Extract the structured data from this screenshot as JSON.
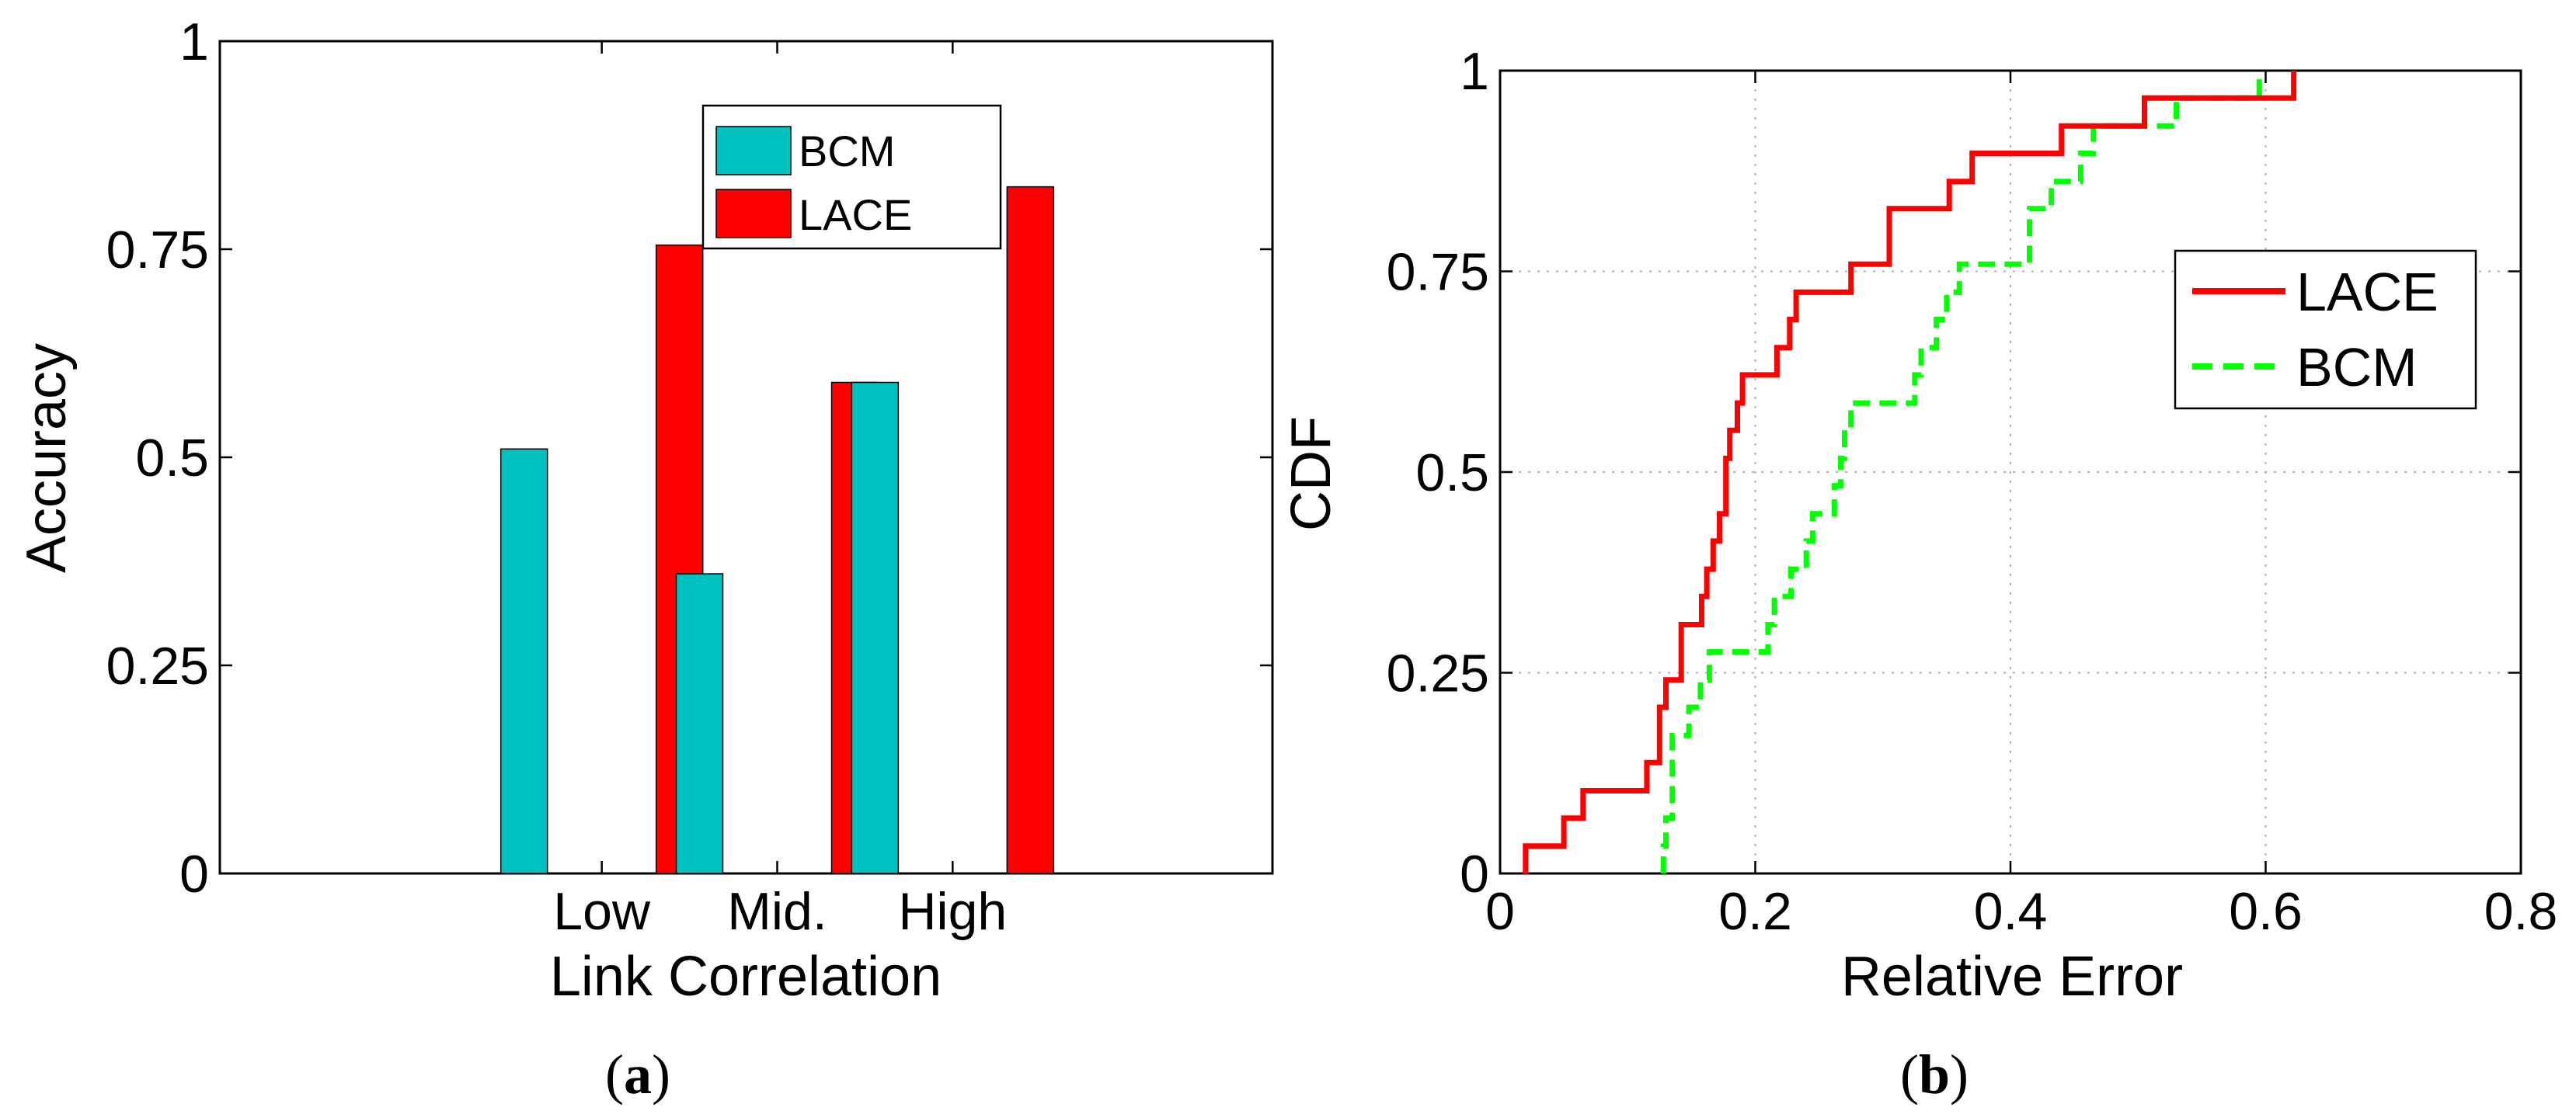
{
  "chart_data": [
    {
      "type": "bar",
      "panel_label": "a",
      "xlabel": "Link Correlation",
      "ylabel": "Accuracy",
      "categories": [
        "Low",
        "Mid.",
        "High"
      ],
      "ylim": [
        0,
        1
      ],
      "yticks": [
        "0",
        "0.25",
        "0.5",
        "0.75",
        "1"
      ],
      "yticks_values": [
        0,
        0.25,
        0.5,
        0.75,
        1
      ],
      "grid": false,
      "legend_position": "top-right",
      "series": [
        {
          "name": "BCM",
          "color": "#00BFBF",
          "values": [
            0.51,
            0.36,
            0.59
          ]
        },
        {
          "name": "LACE",
          "color": "#FF0000",
          "values": [
            0.755,
            0.59,
            0.825
          ]
        }
      ]
    },
    {
      "type": "line",
      "step": true,
      "panel_label": "b",
      "xlabel": "Relative Error",
      "ylabel": "CDF",
      "xlim": [
        0,
        0.8
      ],
      "ylim": [
        0,
        1
      ],
      "xticks": [
        "0",
        "0.2",
        "0.4",
        "0.6",
        "0.8"
      ],
      "xticks_values": [
        0,
        0.2,
        0.4,
        0.6,
        0.8
      ],
      "yticks": [
        "0",
        "0.25",
        "0.5",
        "0.75",
        "1"
      ],
      "yticks_values": [
        0,
        0.25,
        0.5,
        0.75,
        1
      ],
      "grid": true,
      "legend_position": "top-right",
      "series": [
        {
          "name": "LACE",
          "color": "#FF0000",
          "style": "solid",
          "points": [
            [
              0.02,
              0
            ],
            [
              0.02,
              0.034
            ],
            [
              0.05,
              0.034
            ],
            [
              0.05,
              0.069
            ],
            [
              0.065,
              0.069
            ],
            [
              0.065,
              0.103
            ],
            [
              0.115,
              0.103
            ],
            [
              0.115,
              0.138
            ],
            [
              0.125,
              0.138
            ],
            [
              0.125,
              0.207
            ],
            [
              0.13,
              0.207
            ],
            [
              0.13,
              0.241
            ],
            [
              0.142,
              0.241
            ],
            [
              0.142,
              0.31
            ],
            [
              0.158,
              0.31
            ],
            [
              0.158,
              0.345
            ],
            [
              0.162,
              0.345
            ],
            [
              0.162,
              0.379
            ],
            [
              0.167,
              0.379
            ],
            [
              0.167,
              0.414
            ],
            [
              0.172,
              0.414
            ],
            [
              0.172,
              0.448
            ],
            [
              0.177,
              0.448
            ],
            [
              0.177,
              0.517
            ],
            [
              0.18,
              0.517
            ],
            [
              0.18,
              0.552
            ],
            [
              0.186,
              0.552
            ],
            [
              0.186,
              0.586
            ],
            [
              0.19,
              0.586
            ],
            [
              0.19,
              0.621
            ],
            [
              0.217,
              0.621
            ],
            [
              0.217,
              0.655
            ],
            [
              0.227,
              0.655
            ],
            [
              0.227,
              0.69
            ],
            [
              0.232,
              0.69
            ],
            [
              0.232,
              0.724
            ],
            [
              0.275,
              0.724
            ],
            [
              0.275,
              0.759
            ],
            [
              0.305,
              0.759
            ],
            [
              0.305,
              0.828
            ],
            [
              0.352,
              0.828
            ],
            [
              0.352,
              0.862
            ],
            [
              0.37,
              0.862
            ],
            [
              0.37,
              0.897
            ],
            [
              0.44,
              0.897
            ],
            [
              0.44,
              0.931
            ],
            [
              0.505,
              0.931
            ],
            [
              0.505,
              0.966
            ],
            [
              0.622,
              0.966
            ],
            [
              0.622,
              1.0
            ]
          ]
        },
        {
          "name": "BCM",
          "color": "#00FF00",
          "style": "dashed",
          "points": [
            [
              0.128,
              0
            ],
            [
              0.128,
              0.034
            ],
            [
              0.13,
              0.034
            ],
            [
              0.13,
              0.069
            ],
            [
              0.135,
              0.069
            ],
            [
              0.135,
              0.172
            ],
            [
              0.148,
              0.172
            ],
            [
              0.148,
              0.207
            ],
            [
              0.157,
              0.207
            ],
            [
              0.157,
              0.241
            ],
            [
              0.164,
              0.241
            ],
            [
              0.164,
              0.276
            ],
            [
              0.21,
              0.276
            ],
            [
              0.21,
              0.31
            ],
            [
              0.215,
              0.31
            ],
            [
              0.215,
              0.345
            ],
            [
              0.228,
              0.345
            ],
            [
              0.228,
              0.379
            ],
            [
              0.24,
              0.379
            ],
            [
              0.24,
              0.414
            ],
            [
              0.245,
              0.414
            ],
            [
              0.245,
              0.448
            ],
            [
              0.262,
              0.448
            ],
            [
              0.262,
              0.483
            ],
            [
              0.267,
              0.483
            ],
            [
              0.267,
              0.517
            ],
            [
              0.27,
              0.517
            ],
            [
              0.27,
              0.552
            ],
            [
              0.275,
              0.552
            ],
            [
              0.275,
              0.586
            ],
            [
              0.325,
              0.586
            ],
            [
              0.325,
              0.621
            ],
            [
              0.33,
              0.621
            ],
            [
              0.33,
              0.655
            ],
            [
              0.342,
              0.655
            ],
            [
              0.342,
              0.69
            ],
            [
              0.35,
              0.69
            ],
            [
              0.35,
              0.724
            ],
            [
              0.36,
              0.724
            ],
            [
              0.36,
              0.759
            ],
            [
              0.415,
              0.759
            ],
            [
              0.415,
              0.828
            ],
            [
              0.432,
              0.828
            ],
            [
              0.432,
              0.862
            ],
            [
              0.455,
              0.862
            ],
            [
              0.455,
              0.897
            ],
            [
              0.465,
              0.897
            ],
            [
              0.465,
              0.931
            ],
            [
              0.53,
              0.931
            ],
            [
              0.53,
              0.966
            ],
            [
              0.595,
              0.966
            ],
            [
              0.595,
              1.0
            ]
          ]
        }
      ]
    }
  ]
}
